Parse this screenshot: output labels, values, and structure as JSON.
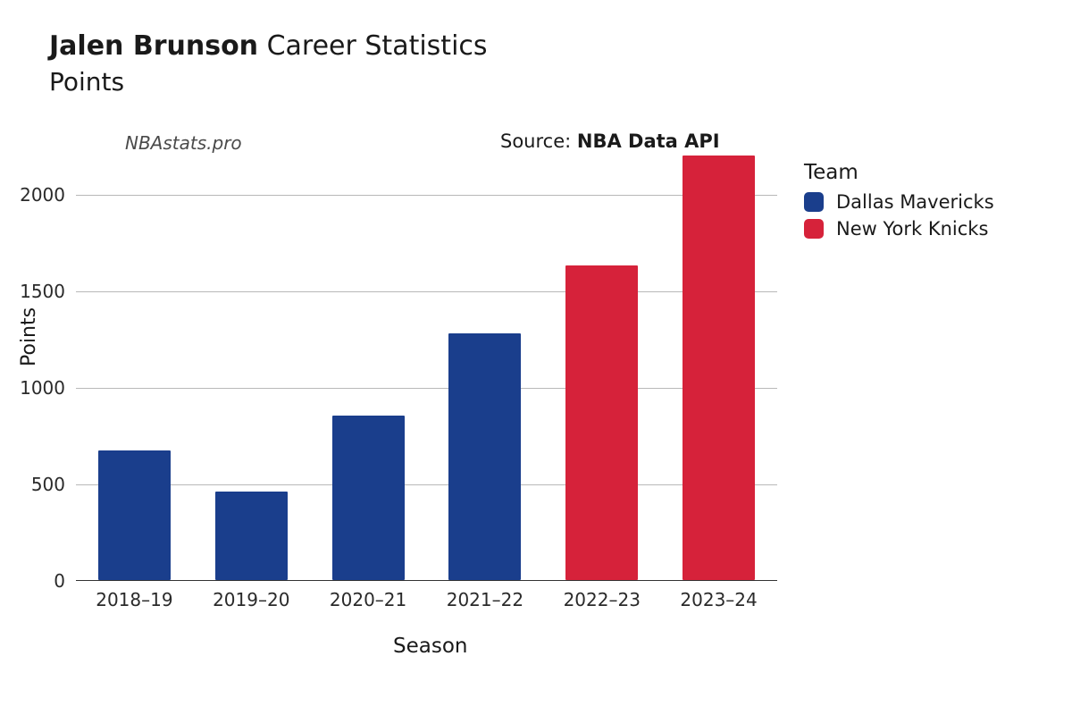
{
  "title": {
    "player": "Jalen Brunson",
    "rest": "Career Statistics",
    "metric": "Points",
    "title_fontsize": 30,
    "metric_fontsize": 28
  },
  "watermark": "NBAstats.pro",
  "source": {
    "label": "Source: ",
    "name": "NBA Data API"
  },
  "chart": {
    "type": "bar",
    "xlabel": "Season",
    "ylabel": "Points",
    "label_fontsize": 22,
    "tick_fontsize": 20,
    "background_color": "#ffffff",
    "grid_color": "#b8b8b8",
    "axis_color": "#333333",
    "ylim": [
      0,
      2200
    ],
    "ytick_step": 500,
    "yticks": [
      0,
      500,
      1000,
      1500,
      2000
    ],
    "bar_width": 0.62,
    "categories": [
      "2018–19",
      "2019–20",
      "2020–21",
      "2021–22",
      "2022–23",
      "2023–24"
    ],
    "values": [
      670,
      460,
      850,
      1280,
      1630,
      2200
    ],
    "bar_colors": [
      "#1a3e8c",
      "#1a3e8c",
      "#1a3e8c",
      "#1a3e8c",
      "#d6223a",
      "#d6223a"
    ],
    "series_team": [
      "Dallas Mavericks",
      "Dallas Mavericks",
      "Dallas Mavericks",
      "Dallas Mavericks",
      "New York Knicks",
      "New York Knicks"
    ]
  },
  "legend": {
    "title": "Team",
    "items": [
      {
        "label": "Dallas Mavericks",
        "color": "#1a3e8c"
      },
      {
        "label": "New York Knicks",
        "color": "#d6223a"
      }
    ]
  }
}
